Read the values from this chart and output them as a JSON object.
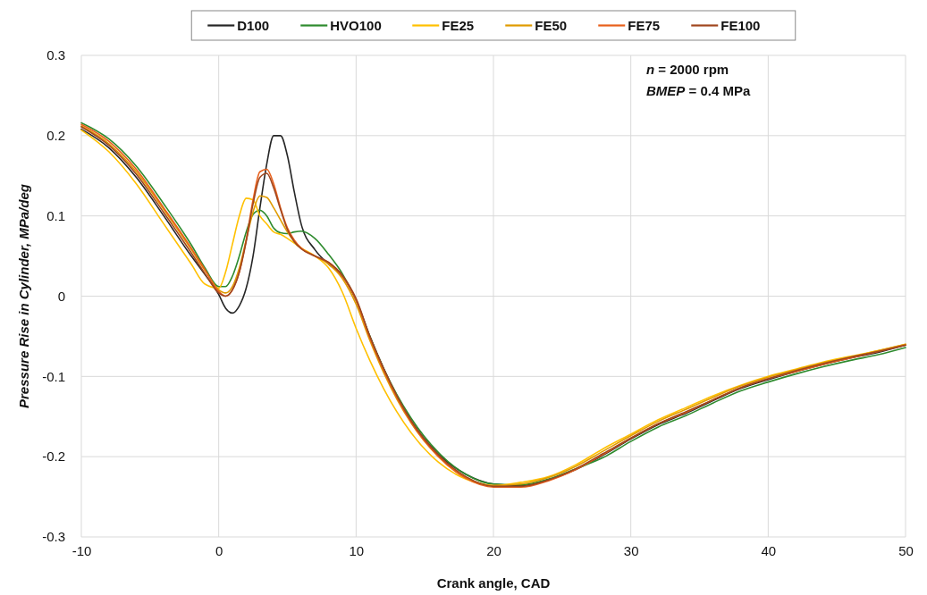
{
  "chart_data": {
    "type": "line",
    "xlabel": "Crank angle, CAD",
    "ylabel": "Pressure  Rise in Cylinder, MPa/deg",
    "annotations": [
      "n = 2000 rpm",
      "BMEP = 0.4 MPa"
    ],
    "x": [
      -10,
      -8,
      -6,
      -4,
      -2,
      -1,
      0,
      0.5,
      1,
      1.5,
      2,
      2.5,
      3,
      3.5,
      4,
      4.5,
      5,
      5.5,
      6,
      7,
      8,
      9,
      10,
      11,
      12,
      14,
      16,
      18,
      20,
      22,
      24,
      26,
      28,
      30,
      32,
      34,
      36,
      38,
      40,
      42,
      44,
      46,
      48,
      50
    ],
    "series": [
      {
        "name": "D100",
        "color": "#262626",
        "values": [
          0.208,
          0.185,
          0.148,
          0.1,
          0.05,
          0.027,
          0.002,
          -0.015,
          -0.021,
          -0.012,
          0.01,
          0.05,
          0.11,
          0.165,
          0.2,
          0.2,
          0.175,
          0.13,
          0.09,
          0.058,
          0.04,
          0.025,
          -0.005,
          -0.05,
          -0.09,
          -0.155,
          -0.197,
          -0.222,
          -0.234,
          -0.236,
          -0.229,
          -0.216,
          -0.198,
          -0.178,
          -0.16,
          -0.146,
          -0.13,
          -0.115,
          -0.104,
          -0.094,
          -0.085,
          -0.077,
          -0.07,
          -0.061
        ]
      },
      {
        "name": "HVO100",
        "color": "#2e8b2e",
        "values": [
          0.216,
          0.196,
          0.162,
          0.115,
          0.064,
          0.035,
          0.012,
          0.012,
          0.025,
          0.05,
          0.08,
          0.102,
          0.107,
          0.1,
          0.085,
          0.079,
          0.078,
          0.08,
          0.081,
          0.072,
          0.052,
          0.028,
          -0.005,
          -0.05,
          -0.09,
          -0.152,
          -0.195,
          -0.222,
          -0.234,
          -0.235,
          -0.228,
          -0.215,
          -0.201,
          -0.181,
          -0.163,
          -0.149,
          -0.133,
          -0.118,
          -0.107,
          -0.097,
          -0.088,
          -0.08,
          -0.073,
          -0.064
        ]
      },
      {
        "name": "FE25",
        "color": "#ffc000",
        "values": [
          0.207,
          0.18,
          0.14,
          0.09,
          0.04,
          0.015,
          0.01,
          0.03,
          0.065,
          0.1,
          0.122,
          0.12,
          0.1,
          0.09,
          0.08,
          0.077,
          0.072,
          0.066,
          0.06,
          0.05,
          0.035,
          0.005,
          -0.04,
          -0.08,
          -0.115,
          -0.17,
          -0.207,
          -0.228,
          -0.236,
          -0.232,
          -0.225,
          -0.21,
          -0.19,
          -0.172,
          -0.154,
          -0.139,
          -0.124,
          -0.111,
          -0.1,
          -0.091,
          -0.082,
          -0.075,
          -0.068,
          -0.06
        ]
      },
      {
        "name": "FE50",
        "color": "#e09b00",
        "values": [
          0.212,
          0.19,
          0.155,
          0.108,
          0.058,
          0.032,
          0.008,
          0.004,
          0.012,
          0.035,
          0.07,
          0.105,
          0.125,
          0.123,
          0.11,
          0.095,
          0.08,
          0.068,
          0.06,
          0.05,
          0.04,
          0.022,
          -0.01,
          -0.055,
          -0.095,
          -0.158,
          -0.2,
          -0.226,
          -0.236,
          -0.234,
          -0.226,
          -0.212,
          -0.193,
          -0.174,
          -0.156,
          -0.141,
          -0.126,
          -0.112,
          -0.101,
          -0.092,
          -0.083,
          -0.076,
          -0.068,
          -0.06
        ]
      },
      {
        "name": "FE75",
        "color": "#e8601c",
        "values": [
          0.214,
          0.193,
          0.158,
          0.11,
          0.06,
          0.033,
          0.006,
          0.0,
          0.008,
          0.03,
          0.07,
          0.12,
          0.155,
          0.158,
          0.14,
          0.11,
          0.085,
          0.07,
          0.06,
          0.05,
          0.042,
          0.025,
          -0.005,
          -0.052,
          -0.092,
          -0.157,
          -0.2,
          -0.227,
          -0.238,
          -0.238,
          -0.23,
          -0.216,
          -0.197,
          -0.177,
          -0.159,
          -0.145,
          -0.129,
          -0.114,
          -0.103,
          -0.094,
          -0.085,
          -0.077,
          -0.069,
          -0.061
        ]
      },
      {
        "name": "FE100",
        "color": "#a0461e",
        "values": [
          0.211,
          0.188,
          0.152,
          0.104,
          0.054,
          0.028,
          0.004,
          0.0,
          0.008,
          0.03,
          0.068,
          0.115,
          0.148,
          0.153,
          0.135,
          0.108,
          0.083,
          0.068,
          0.059,
          0.05,
          0.042,
          0.026,
          -0.003,
          -0.05,
          -0.09,
          -0.155,
          -0.198,
          -0.225,
          -0.237,
          -0.237,
          -0.229,
          -0.215,
          -0.196,
          -0.177,
          -0.159,
          -0.144,
          -0.129,
          -0.114,
          -0.103,
          -0.093,
          -0.084,
          -0.076,
          -0.069,
          -0.061
        ]
      }
    ],
    "xlim": [
      -10,
      50
    ],
    "xticks": [
      -10,
      0,
      10,
      20,
      30,
      40,
      50
    ],
    "ylim": [
      -0.3,
      0.3
    ],
    "yticks": [
      -0.3,
      -0.2,
      -0.1,
      0,
      0.1,
      0.2,
      0.3
    ],
    "grid": true,
    "legend": "top",
    "marker": "none",
    "line_style": "solid"
  }
}
